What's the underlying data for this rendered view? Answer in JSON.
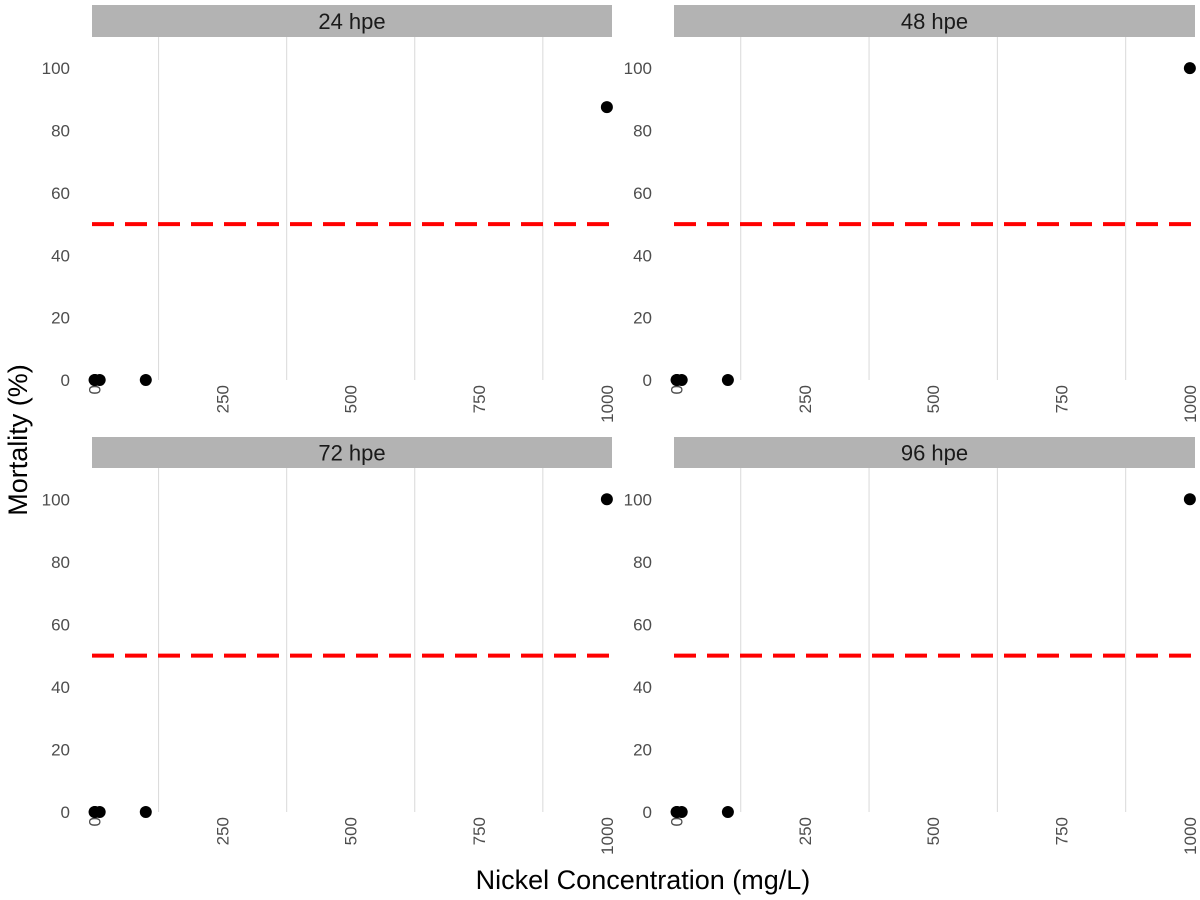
{
  "chart_data": {
    "type": "scatter",
    "xlabel": "Nickel Concentration (mg/L)",
    "ylabel": "Mortality (%)",
    "x_ticks": [
      0,
      250,
      500,
      750,
      1000
    ],
    "y_ticks": [
      0,
      20,
      40,
      60,
      80,
      100
    ],
    "xlim": [
      -5,
      1010
    ],
    "ylim": [
      0,
      110
    ],
    "reference_line": {
      "y": 50,
      "style": "dashed",
      "color": "#ff0000"
    },
    "point_color": "#000000",
    "grid": "vertical minor lines",
    "panels": [
      {
        "label": "24 hpe",
        "points": [
          {
            "x": 0,
            "y": 0
          },
          {
            "x": 1,
            "y": 0
          },
          {
            "x": 10,
            "y": 0
          },
          {
            "x": 100,
            "y": 0
          },
          {
            "x": 1000,
            "y": 87.5
          }
        ]
      },
      {
        "label": "48 hpe",
        "points": [
          {
            "x": 0,
            "y": 0
          },
          {
            "x": 1,
            "y": 0
          },
          {
            "x": 10,
            "y": 0
          },
          {
            "x": 100,
            "y": 0
          },
          {
            "x": 1000,
            "y": 100
          }
        ]
      },
      {
        "label": "72 hpe",
        "points": [
          {
            "x": 0,
            "y": 0
          },
          {
            "x": 1,
            "y": 0
          },
          {
            "x": 10,
            "y": 0
          },
          {
            "x": 100,
            "y": 0
          },
          {
            "x": 1000,
            "y": 100
          }
        ]
      },
      {
        "label": "96 hpe",
        "points": [
          {
            "x": 0,
            "y": 0
          },
          {
            "x": 1,
            "y": 0
          },
          {
            "x": 10,
            "y": 0
          },
          {
            "x": 100,
            "y": 0
          },
          {
            "x": 1000,
            "y": 100
          }
        ]
      }
    ]
  }
}
